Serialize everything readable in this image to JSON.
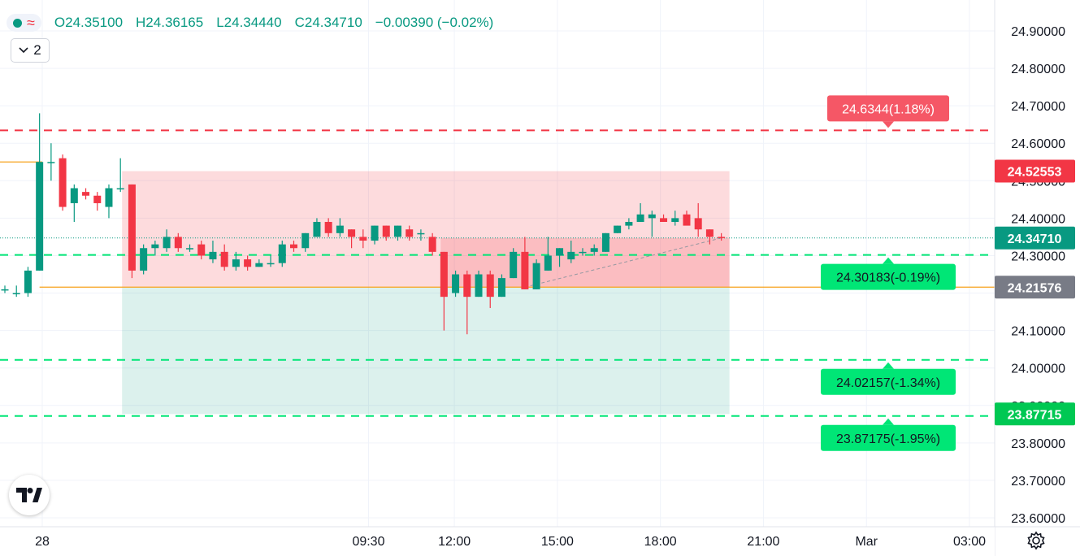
{
  "legend": {
    "open": "O24.35100",
    "high": "H24.36165",
    "low": "L24.34440",
    "close": "C24.34710",
    "change": "−0.00390 (−0.02%)",
    "collapse_count": "2"
  },
  "colors": {
    "up": "#089981",
    "down": "#f23645",
    "stop_zone": "rgba(242,54,69,0.18)",
    "target_zone": "rgba(8,153,129,0.14)",
    "entry_line": "#f7a21b",
    "target_line": "#00e676",
    "stop_line": "#f23645",
    "prev_close_label": "#787b86"
  },
  "icons": [
    "chart-status-dot-icon",
    "wave-icon",
    "chevron-down-icon",
    "tradingview-logo-icon",
    "gear-icon"
  ],
  "chart_data": {
    "type": "candlestick",
    "title": "",
    "xlabel": "",
    "ylabel": "",
    "ylim": [
      23.56,
      24.96
    ],
    "xlim_hours": [
      -0.25,
      27.4
    ],
    "y_ticks": [
      "24.90000",
      "24.80000",
      "24.70000",
      "24.60000",
      "24.50000",
      "24.40000",
      "24.30000",
      "24.20000",
      "24.10000",
      "24.00000",
      "23.90000",
      "23.80000",
      "23.70000",
      "23.60000"
    ],
    "x_ticks": [
      {
        "label": "28",
        "hour": 0
      },
      {
        "label": "09:30",
        "hour": 9.5
      },
      {
        "label": "12:00",
        "hour": 12
      },
      {
        "label": "15:00",
        "hour": 15
      },
      {
        "label": "18:00",
        "hour": 18
      },
      {
        "label": "21:00",
        "hour": 21
      },
      {
        "label": "Mar",
        "hour": 24
      },
      {
        "label": "03:00",
        "hour": 27
      }
    ],
    "grid": true,
    "candles": [
      {
        "o": 24.21,
        "h": 24.22,
        "l": 24.2,
        "c": 24.21
      },
      {
        "o": 24.2,
        "h": 24.22,
        "l": 24.19,
        "c": 24.2
      },
      {
        "o": 24.2,
        "h": 24.27,
        "l": 24.19,
        "c": 24.26
      },
      {
        "o": 24.26,
        "h": 24.68,
        "l": 24.26,
        "c": 24.55
      },
      {
        "o": 24.55,
        "h": 24.6,
        "l": 24.5,
        "c": 24.55
      },
      {
        "o": 24.56,
        "h": 24.57,
        "l": 24.42,
        "c": 24.43
      },
      {
        "o": 24.44,
        "h": 24.49,
        "l": 24.39,
        "c": 24.48
      },
      {
        "o": 24.47,
        "h": 24.48,
        "l": 24.45,
        "c": 24.46
      },
      {
        "o": 24.46,
        "h": 24.47,
        "l": 24.42,
        "c": 24.44
      },
      {
        "o": 24.43,
        "h": 24.49,
        "l": 24.4,
        "c": 24.48
      },
      {
        "o": 24.48,
        "h": 24.56,
        "l": 24.47,
        "c": 24.48
      },
      {
        "o": 24.49,
        "h": 24.49,
        "l": 24.24,
        "c": 24.26
      },
      {
        "o": 24.26,
        "h": 24.33,
        "l": 24.25,
        "c": 24.32
      },
      {
        "o": 24.32,
        "h": 24.34,
        "l": 24.3,
        "c": 24.33
      },
      {
        "o": 24.32,
        "h": 24.37,
        "l": 24.31,
        "c": 24.35
      },
      {
        "o": 24.35,
        "h": 24.36,
        "l": 24.31,
        "c": 24.32
      },
      {
        "o": 24.32,
        "h": 24.33,
        "l": 24.31,
        "c": 24.32
      },
      {
        "o": 24.33,
        "h": 24.34,
        "l": 24.29,
        "c": 24.3
      },
      {
        "o": 24.29,
        "h": 24.34,
        "l": 24.28,
        "c": 24.31
      },
      {
        "o": 24.31,
        "h": 24.33,
        "l": 24.26,
        "c": 24.27
      },
      {
        "o": 24.27,
        "h": 24.31,
        "l": 24.26,
        "c": 24.29
      },
      {
        "o": 24.29,
        "h": 24.3,
        "l": 24.26,
        "c": 24.27
      },
      {
        "o": 24.27,
        "h": 24.29,
        "l": 24.27,
        "c": 24.28
      },
      {
        "o": 24.28,
        "h": 24.3,
        "l": 24.27,
        "c": 24.28
      },
      {
        "o": 24.28,
        "h": 24.34,
        "l": 24.27,
        "c": 24.33
      },
      {
        "o": 24.33,
        "h": 24.34,
        "l": 24.31,
        "c": 24.32
      },
      {
        "o": 24.32,
        "h": 24.36,
        "l": 24.31,
        "c": 24.36
      },
      {
        "o": 24.35,
        "h": 24.4,
        "l": 24.35,
        "c": 24.39
      },
      {
        "o": 24.39,
        "h": 24.4,
        "l": 24.35,
        "c": 24.36
      },
      {
        "o": 24.36,
        "h": 24.4,
        "l": 24.35,
        "c": 24.38
      },
      {
        "o": 24.37,
        "h": 24.37,
        "l": 24.32,
        "c": 24.35
      },
      {
        "o": 24.35,
        "h": 24.37,
        "l": 24.32,
        "c": 24.34
      },
      {
        "o": 24.34,
        "h": 24.38,
        "l": 24.33,
        "c": 24.38
      },
      {
        "o": 24.38,
        "h": 24.38,
        "l": 24.34,
        "c": 24.35
      },
      {
        "o": 24.35,
        "h": 24.38,
        "l": 24.34,
        "c": 24.38
      },
      {
        "o": 24.37,
        "h": 24.38,
        "l": 24.34,
        "c": 24.35
      },
      {
        "o": 24.36,
        "h": 24.37,
        "l": 24.34,
        "c": 24.36
      },
      {
        "o": 24.35,
        "h": 24.36,
        "l": 24.3,
        "c": 24.31
      },
      {
        "o": 24.31,
        "h": 24.31,
        "l": 24.1,
        "c": 24.19
      },
      {
        "o": 24.2,
        "h": 24.26,
        "l": 24.19,
        "c": 24.25
      },
      {
        "o": 24.25,
        "h": 24.26,
        "l": 24.09,
        "c": 24.19
      },
      {
        "o": 24.19,
        "h": 24.26,
        "l": 24.19,
        "c": 24.25
      },
      {
        "o": 24.25,
        "h": 24.26,
        "l": 24.16,
        "c": 24.19
      },
      {
        "o": 24.19,
        "h": 24.25,
        "l": 24.19,
        "c": 24.24
      },
      {
        "o": 24.24,
        "h": 24.32,
        "l": 24.24,
        "c": 24.31
      },
      {
        "o": 24.31,
        "h": 24.35,
        "l": 24.21,
        "c": 24.21
      },
      {
        "o": 24.21,
        "h": 24.29,
        "l": 24.21,
        "c": 24.28
      },
      {
        "o": 24.26,
        "h": 24.35,
        "l": 24.26,
        "c": 24.3
      },
      {
        "o": 24.3,
        "h": 24.32,
        "l": 24.27,
        "c": 24.32
      },
      {
        "o": 24.29,
        "h": 24.34,
        "l": 24.28,
        "c": 24.31
      },
      {
        "o": 24.31,
        "h": 24.32,
        "l": 24.3,
        "c": 24.31
      },
      {
        "o": 24.31,
        "h": 24.33,
        "l": 24.3,
        "c": 24.32
      },
      {
        "o": 24.31,
        "h": 24.36,
        "l": 24.31,
        "c": 24.36
      },
      {
        "o": 24.36,
        "h": 24.38,
        "l": 24.36,
        "c": 24.38
      },
      {
        "o": 24.38,
        "h": 24.4,
        "l": 24.37,
        "c": 24.39
      },
      {
        "o": 24.39,
        "h": 24.44,
        "l": 24.39,
        "c": 24.41
      },
      {
        "o": 24.4,
        "h": 24.42,
        "l": 24.35,
        "c": 24.41
      },
      {
        "o": 24.4,
        "h": 24.41,
        "l": 24.39,
        "c": 24.39
      },
      {
        "o": 24.39,
        "h": 24.42,
        "l": 24.38,
        "c": 24.4
      },
      {
        "o": 24.41,
        "h": 24.42,
        "l": 24.39,
        "c": 24.38
      },
      {
        "o": 24.4,
        "h": 24.44,
        "l": 24.35,
        "c": 24.37
      },
      {
        "o": 24.37,
        "h": 24.37,
        "l": 24.33,
        "c": 24.35
      },
      {
        "o": 24.35,
        "h": 24.36,
        "l": 24.34,
        "c": 24.347
      }
    ],
    "position_tool": {
      "start_index": 10,
      "end_index": 62,
      "entry": 24.21576,
      "stop": 24.52553,
      "target": 23.87715
    },
    "horizontal_levels": [
      {
        "value": 24.6344,
        "label": "24.6344(1.18%)",
        "style": "dashed",
        "color": "#f23645",
        "label_side": "above"
      },
      {
        "value": 24.30183,
        "label": "24.30183(-0.19%)",
        "style": "dashed",
        "color": "#00e676",
        "label_side": "below"
      },
      {
        "value": 24.02157,
        "label": "24.02157(-1.34%)",
        "style": "dashed",
        "color": "#00e676",
        "label_side": "below"
      },
      {
        "value": 23.87175,
        "label": "23.87175(-1.95%)",
        "style": "dashed",
        "color": "#00e676",
        "label_side": "below"
      }
    ],
    "other_lines": [
      {
        "value": 24.55,
        "color": "#f7a21b",
        "from_hour": -0.25,
        "to_hour": 0
      }
    ],
    "price_labels": [
      {
        "value": 24.52553,
        "text": "24.52553",
        "bg": "#f23645"
      },
      {
        "value": 24.3471,
        "text": "24.34710",
        "bg": "#089981"
      },
      {
        "value": 24.21576,
        "text": "24.21576",
        "bg": "#787b86"
      },
      {
        "value": 23.87715,
        "text": "23.87715",
        "bg": "#00c853"
      }
    ],
    "last_price": 24.3471
  }
}
